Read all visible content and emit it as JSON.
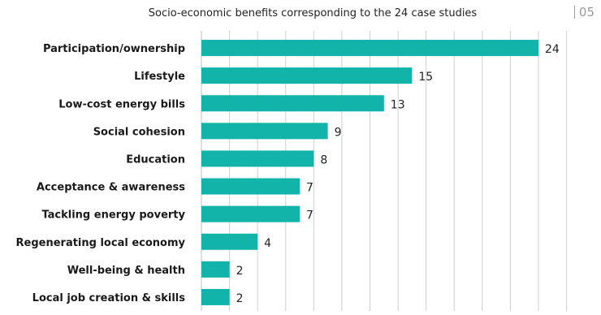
{
  "header": {
    "page_number": "05"
  },
  "chart_data": {
    "type": "bar",
    "orientation": "horizontal",
    "title": "Socio-economic benefits corresponding to the 24 case studies",
    "categories": [
      "Participation/ownership",
      "Lifestyle",
      "Low-cost energy bills",
      "Social cohesion",
      "Education",
      "Acceptance & awareness",
      "Tackling energy poverty",
      "Regenerating local economy",
      "Well-being & health",
      "Local job creation & skills"
    ],
    "values": [
      24,
      15,
      13,
      9,
      8,
      7,
      7,
      4,
      2,
      2
    ],
    "xlim": [
      0,
      24
    ],
    "grid": true,
    "bar_color": "#12b3a8",
    "grid_color": "#cfcfcf"
  }
}
